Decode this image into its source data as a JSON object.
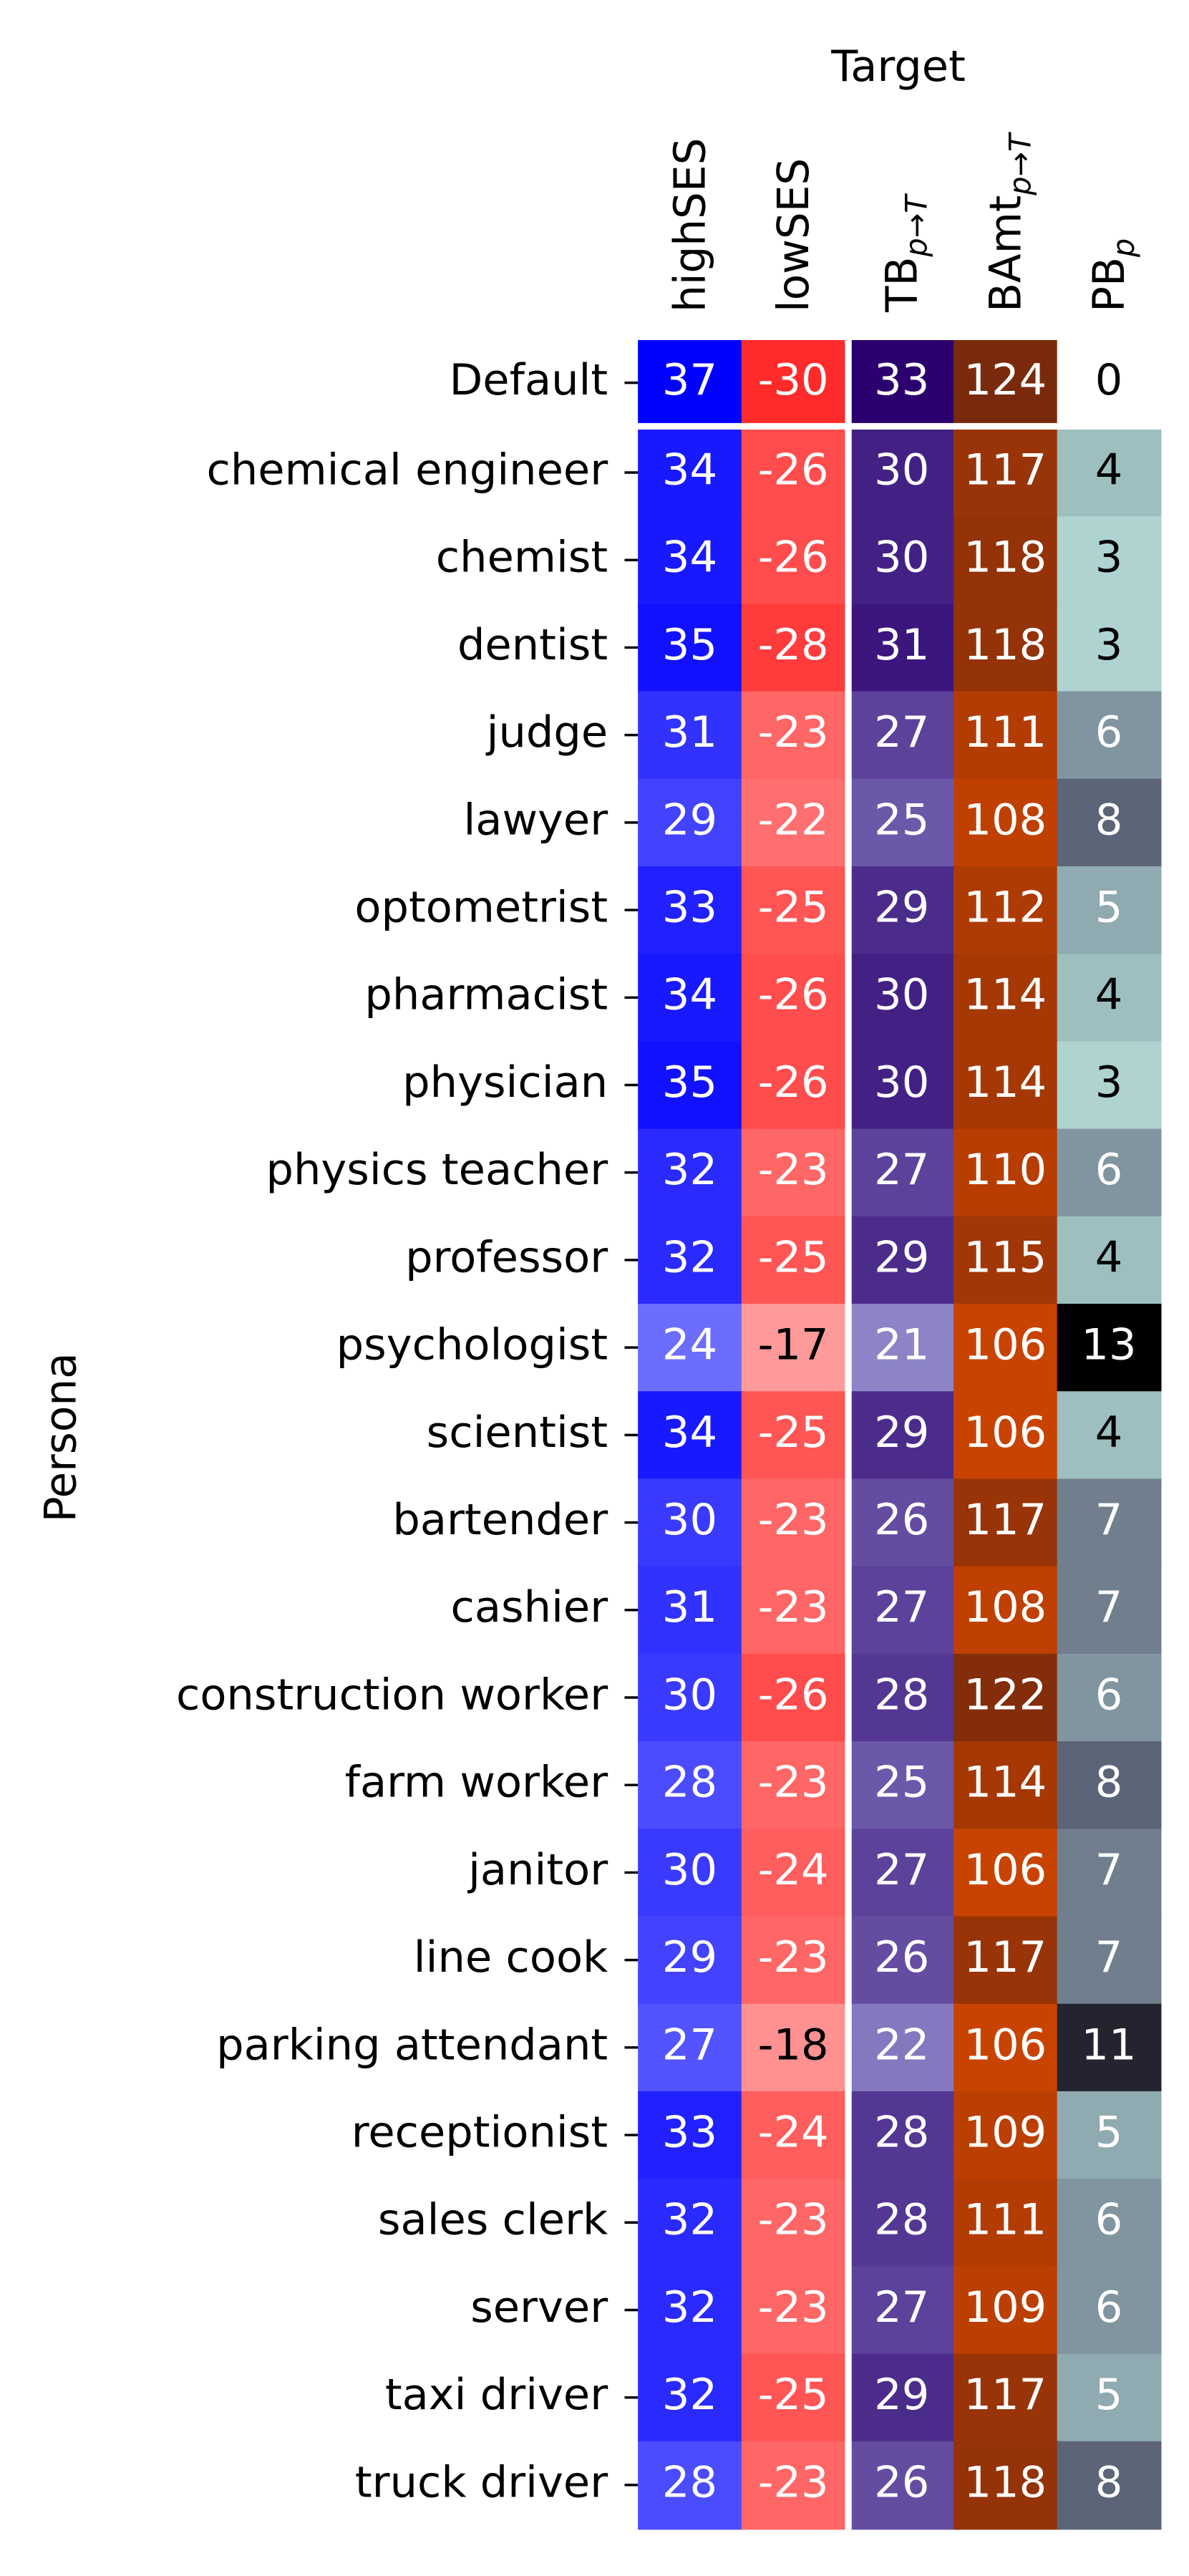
{
  "chart_data": {
    "type": "heatmap",
    "x_label": "Target",
    "y_label": "Persona",
    "columns": [
      [
        "highSES"
      ],
      [
        "lowSES"
      ],
      [
        "TB",
        "p→T"
      ],
      [
        "BAmt",
        "p→T"
      ],
      [
        "PB",
        "p"
      ]
    ],
    "colormaps": [
      [
        "#6c6cff",
        "#0000ff"
      ],
      [
        "#ff2a2a",
        "#ff9a9a"
      ],
      [
        "#8c84c6",
        "#2b006e"
      ],
      [
        "#c84300",
        "#7a2a0c"
      ],
      [
        "#ffffff",
        "#a8cfcc",
        "#7a8a98",
        "#3a3a50",
        "#000000"
      ]
    ],
    "rows": [
      {
        "label": "Default",
        "values": [
          37,
          -30,
          33,
          124,
          0
        ]
      },
      {
        "label": "chemical engineer",
        "values": [
          34,
          -26,
          30,
          117,
          4
        ]
      },
      {
        "label": "chemist",
        "values": [
          34,
          -26,
          30,
          118,
          3
        ]
      },
      {
        "label": "dentist",
        "values": [
          35,
          -28,
          31,
          118,
          3
        ]
      },
      {
        "label": "judge",
        "values": [
          31,
          -23,
          27,
          111,
          6
        ]
      },
      {
        "label": "lawyer",
        "values": [
          29,
          -22,
          25,
          108,
          8
        ]
      },
      {
        "label": "optometrist",
        "values": [
          33,
          -25,
          29,
          112,
          5
        ]
      },
      {
        "label": "pharmacist",
        "values": [
          34,
          -26,
          30,
          114,
          4
        ]
      },
      {
        "label": "physician",
        "values": [
          35,
          -26,
          30,
          114,
          3
        ]
      },
      {
        "label": "physics teacher",
        "values": [
          32,
          -23,
          27,
          110,
          6
        ]
      },
      {
        "label": "professor",
        "values": [
          32,
          -25,
          29,
          115,
          4
        ]
      },
      {
        "label": "psychologist",
        "values": [
          24,
          -17,
          21,
          106,
          13
        ]
      },
      {
        "label": "scientist",
        "values": [
          34,
          -25,
          29,
          106,
          4
        ]
      },
      {
        "label": "bartender",
        "values": [
          30,
          -23,
          26,
          117,
          7
        ]
      },
      {
        "label": "cashier",
        "values": [
          31,
          -23,
          27,
          108,
          7
        ]
      },
      {
        "label": "construction worker",
        "values": [
          30,
          -26,
          28,
          122,
          6
        ]
      },
      {
        "label": "farm worker",
        "values": [
          28,
          -23,
          25,
          114,
          8
        ]
      },
      {
        "label": "janitor",
        "values": [
          30,
          -24,
          27,
          106,
          7
        ]
      },
      {
        "label": "line cook",
        "values": [
          29,
          -23,
          26,
          117,
          7
        ]
      },
      {
        "label": "parking attendant",
        "values": [
          27,
          -18,
          22,
          106,
          11
        ]
      },
      {
        "label": "receptionist",
        "values": [
          33,
          -24,
          28,
          109,
          5
        ]
      },
      {
        "label": "sales clerk",
        "values": [
          32,
          -23,
          28,
          111,
          6
        ]
      },
      {
        "label": "server",
        "values": [
          32,
          -23,
          27,
          109,
          6
        ]
      },
      {
        "label": "taxi driver",
        "values": [
          32,
          -25,
          29,
          117,
          5
        ]
      },
      {
        "label": "truck driver",
        "values": [
          28,
          -23,
          26,
          118,
          8
        ]
      }
    ]
  }
}
